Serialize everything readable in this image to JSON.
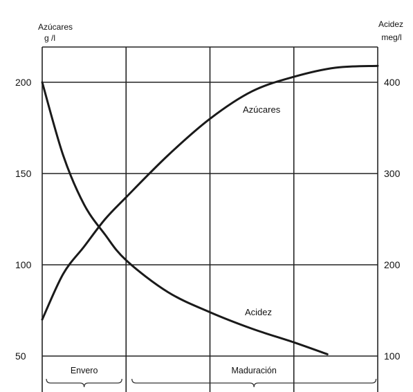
{
  "chart_data": {
    "type": "line",
    "left_axis": {
      "title_line1": "Azúcares",
      "title_line2": "g /l",
      "ticks": [
        "200",
        "150",
        "100",
        "50"
      ],
      "tick_values": [
        200,
        150,
        100,
        50
      ],
      "ylim": [
        50,
        200
      ]
    },
    "right_axis": {
      "title_line1": "Acidez",
      "title_line2": "meg/l",
      "ticks": [
        "400",
        "300",
        "200",
        "100"
      ],
      "tick_values": [
        400,
        300,
        200,
        100
      ],
      "ylim": [
        100,
        400
      ]
    },
    "x": {
      "xlim": [
        0,
        4
      ]
    },
    "grid": true,
    "series": [
      {
        "name": "Azúcares",
        "axis": "left",
        "x": [
          0,
          0.25,
          0.5,
          0.75,
          1.0,
          1.5,
          2.0,
          2.5,
          3.0,
          3.5,
          4.0
        ],
        "values": [
          70,
          95,
          110,
          125,
          137,
          160,
          180,
          195,
          203,
          208,
          209
        ]
      },
      {
        "name": "Acidez",
        "axis": "right",
        "x": [
          0,
          0.25,
          0.5,
          0.75,
          1.0,
          1.5,
          2.0,
          2.5,
          3.0,
          3.4
        ],
        "values": [
          400,
          320,
          266,
          233,
          205,
          170,
          148,
          130,
          115,
          102
        ]
      }
    ],
    "phases": [
      {
        "label": "Envero",
        "x_range": [
          0.05,
          0.95
        ]
      },
      {
        "label": "Maduración",
        "x_range": [
          1.07,
          3.98
        ]
      }
    ]
  }
}
